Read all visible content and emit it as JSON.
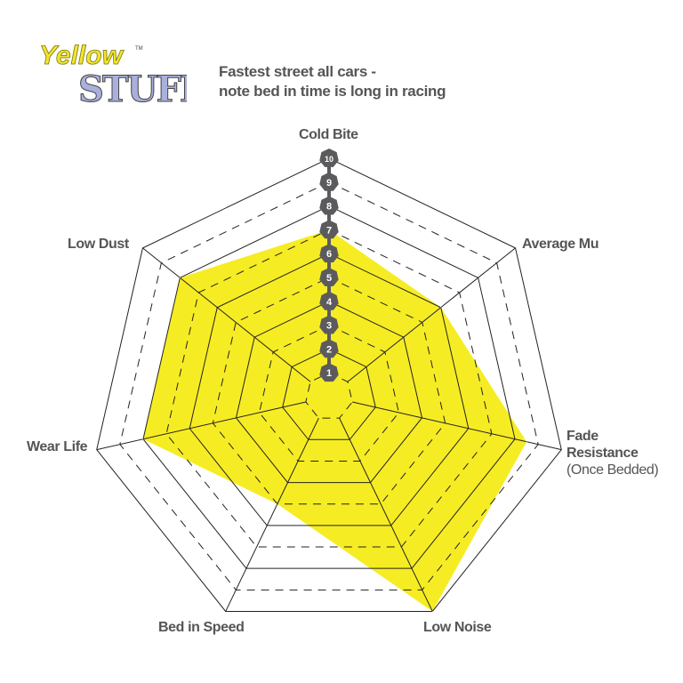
{
  "logo": {
    "line1": "Yellow",
    "line2": "STUFF",
    "tm": "TM"
  },
  "subtitle": {
    "line1": "Fastest street all cars -",
    "line2": "note bed in time is long in racing"
  },
  "chart_data": {
    "type": "radar",
    "title": "",
    "axes": [
      "Cold Bite",
      "Average Mu",
      "Fade Resistance",
      "Low Noise",
      "Bed in Speed",
      "Wear Life",
      "Low Dust"
    ],
    "axis_sublabels": {
      "Fade Resistance": "(Once Bedded)"
    },
    "scale": {
      "min": 0,
      "max": 10,
      "tick_labels": [
        "1",
        "2",
        "3",
        "4",
        "5",
        "6",
        "7",
        "8",
        "9",
        "10"
      ]
    },
    "values": [
      7,
      6,
      8.5,
      10,
      5,
      8,
      8
    ],
    "colors": {
      "fill": "#f6ec23",
      "grid": "#222222",
      "badge": "#5b5b5e",
      "label": "#555555"
    },
    "grid": "solid on even rings, dashed on odd rings"
  }
}
